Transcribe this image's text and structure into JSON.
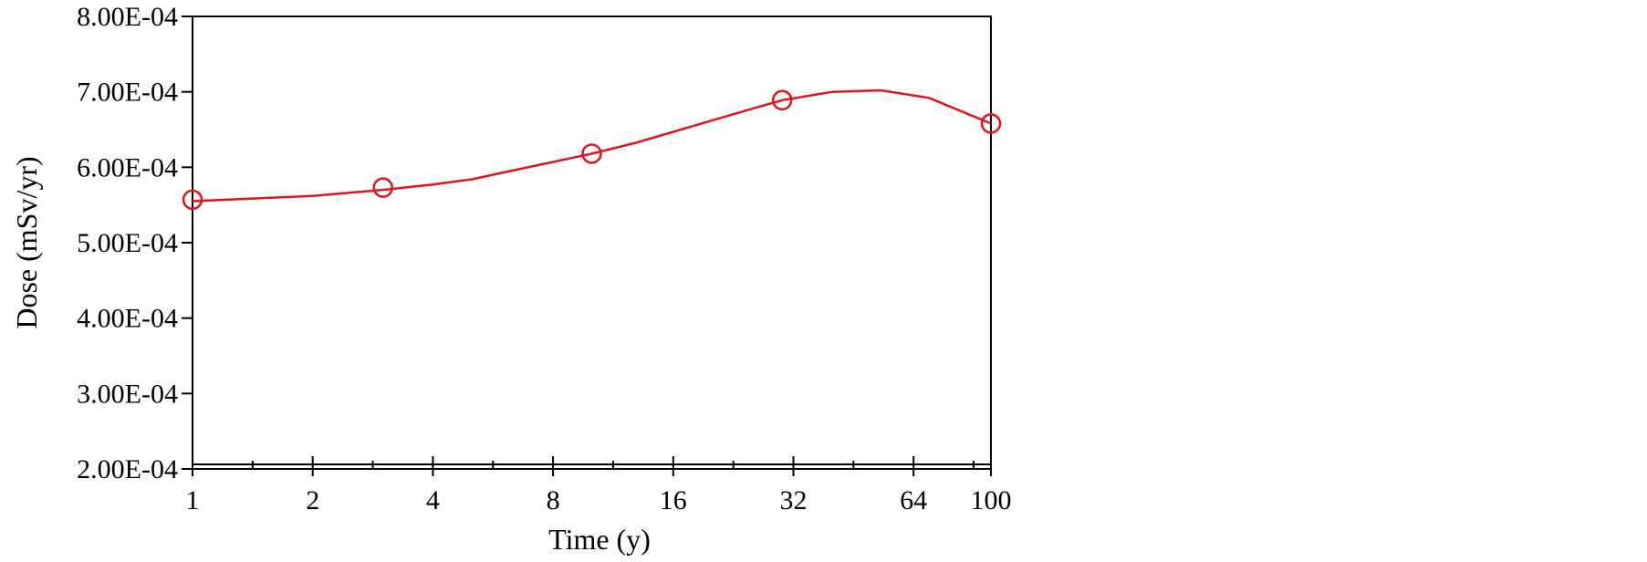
{
  "chart_data": {
    "type": "line",
    "xlabel": "Time (y)",
    "ylabel": "Dose (mSv/yr)",
    "x_scale": "log2",
    "xlim": [
      1,
      100
    ],
    "ylim": [
      0.0002,
      0.0008
    ],
    "x_ticks": [
      1,
      2,
      4,
      8,
      16,
      32,
      64,
      100
    ],
    "x_tick_labels": [
      "1",
      "2",
      "4",
      "8",
      "16",
      "32",
      "64",
      "100"
    ],
    "y_ticks": [
      0.0002,
      0.0003,
      0.0004,
      0.0005,
      0.0006,
      0.0007,
      0.0008
    ],
    "y_tick_labels": [
      "2.00E-04",
      "3.00E-04",
      "4.00E-04",
      "5.00E-04",
      "6.00E-04",
      "7.00E-04",
      "8.00E-04"
    ],
    "grid": false,
    "series": [
      {
        "color": "#e3141c",
        "line": {
          "x": [
            1,
            2,
            3,
            4,
            5,
            6,
            8,
            10,
            13,
            16,
            20,
            25,
            30,
            40,
            53,
            70,
            100
          ],
          "y": [
            0.000555,
            0.000562,
            0.00057,
            0.000577,
            0.000584,
            0.000593,
            0.000607,
            0.000618,
            0.000633,
            0.000647,
            0.000662,
            0.000677,
            0.000689,
            0.0007,
            0.000702,
            0.000692,
            0.000658
          ]
        },
        "markers": {
          "symbol": "circle-open",
          "x": [
            1,
            3,
            10,
            30,
            100
          ],
          "y": [
            0.000557,
            0.000573,
            0.000618,
            0.000689,
            0.000658
          ]
        }
      }
    ]
  }
}
